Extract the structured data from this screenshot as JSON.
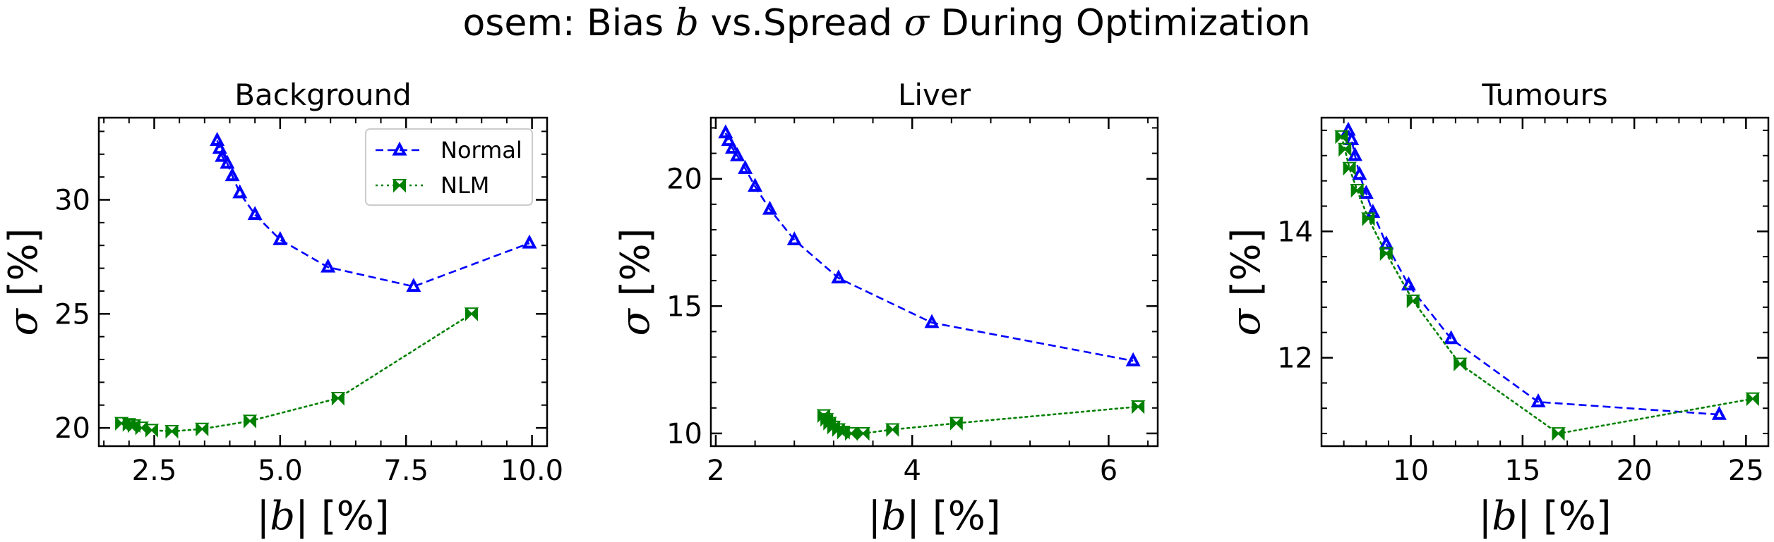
{
  "figure": {
    "title_prefix": "osem: Bias ",
    "title_bias_symbol": "b",
    "title_middle": " vs.Spread ",
    "title_sigma_symbol": "σ",
    "title_suffix": " During Optimization"
  },
  "legend": {
    "entries": [
      {
        "name": "Normal",
        "color": "#0000ff",
        "marker": "tri-up",
        "linestyle": "dashed"
      },
      {
        "name": "NLM",
        "color": "#008000",
        "marker": "bowtie",
        "linestyle": "dotted"
      }
    ],
    "placement": "upper-right of first panel"
  },
  "axis_labels": {
    "x_prefix": "|",
    "x_symbol": "b",
    "x_suffix": "| [%]",
    "y_symbol": "σ",
    "y_suffix": " [%]"
  },
  "chart_data": [
    {
      "type": "line",
      "title": "Background",
      "xlim": [
        1.4,
        10.3
      ],
      "ylim": [
        19.2,
        33.6
      ],
      "xticks": [
        2.5,
        5.0,
        7.5,
        10.0
      ],
      "xtick_labels": [
        "2.5",
        "5.0",
        "7.5",
        "10.0"
      ],
      "yticks": [
        20,
        25,
        30
      ],
      "ytick_labels": [
        "20",
        "25",
        "30"
      ],
      "x_minor_step": 0.5,
      "y_minor_step": 1,
      "grid": false,
      "legend": true,
      "series": [
        {
          "name": "Normal",
          "points": [
            [
              3.75,
              32.6
            ],
            [
              3.8,
              32.25
            ],
            [
              3.85,
              31.9
            ],
            [
              3.95,
              31.6
            ],
            [
              4.05,
              31.05
            ],
            [
              4.2,
              30.3
            ],
            [
              4.5,
              29.35
            ],
            [
              5.0,
              28.25
            ],
            [
              5.95,
              27.05
            ],
            [
              7.65,
              26.2
            ],
            [
              9.95,
              28.1
            ]
          ]
        },
        {
          "name": "NLM",
          "points": [
            [
              1.85,
              20.2
            ],
            [
              2.0,
              20.15
            ],
            [
              2.1,
              20.1
            ],
            [
              2.25,
              20.0
            ],
            [
              2.45,
              19.9
            ],
            [
              2.85,
              19.85
            ],
            [
              3.45,
              19.95
            ],
            [
              4.4,
              20.3
            ],
            [
              6.15,
              21.3
            ],
            [
              8.8,
              25.0
            ]
          ]
        }
      ]
    },
    {
      "type": "line",
      "title": "Liver",
      "xlim": [
        1.95,
        6.5
      ],
      "ylim": [
        9.5,
        22.4
      ],
      "xticks": [
        2,
        4,
        6
      ],
      "xtick_labels": [
        "2",
        "4",
        "6"
      ],
      "yticks": [
        10,
        15,
        20
      ],
      "ytick_labels": [
        "10",
        "15",
        "20"
      ],
      "x_minor_step": 0.4,
      "y_minor_step": 1,
      "grid": false,
      "legend": false,
      "series": [
        {
          "name": "Normal",
          "points": [
            [
              2.1,
              21.8
            ],
            [
              2.13,
              21.5
            ],
            [
              2.17,
              21.2
            ],
            [
              2.22,
              20.9
            ],
            [
              2.3,
              20.4
            ],
            [
              2.4,
              19.7
            ],
            [
              2.55,
              18.8
            ],
            [
              2.8,
              17.6
            ],
            [
              3.25,
              16.1
            ],
            [
              4.2,
              14.35
            ],
            [
              6.25,
              12.85
            ]
          ]
        },
        {
          "name": "NLM",
          "points": [
            [
              3.1,
              10.7
            ],
            [
              3.13,
              10.55
            ],
            [
              3.16,
              10.4
            ],
            [
              3.2,
              10.25
            ],
            [
              3.25,
              10.15
            ],
            [
              3.3,
              10.05
            ],
            [
              3.38,
              10.0
            ],
            [
              3.5,
              10.0
            ],
            [
              3.8,
              10.15
            ],
            [
              4.45,
              10.4
            ],
            [
              6.3,
              11.05
            ]
          ]
        }
      ]
    },
    {
      "type": "line",
      "title": "Tumours",
      "xlim": [
        6.0,
        26.0
      ],
      "ylim": [
        10.6,
        15.8
      ],
      "xticks": [
        10,
        15,
        20,
        25
      ],
      "xtick_labels": [
        "10",
        "15",
        "20",
        "25"
      ],
      "yticks": [
        12,
        14
      ],
      "ytick_labels": [
        "12",
        "14"
      ],
      "x_minor_step": 1,
      "y_minor_step": 0.4,
      "grid": false,
      "legend": false,
      "series": [
        {
          "name": "Normal",
          "points": [
            [
              7.2,
              15.6
            ],
            [
              7.35,
              15.45
            ],
            [
              7.5,
              15.2
            ],
            [
              7.7,
              14.9
            ],
            [
              8.0,
              14.6
            ],
            [
              8.3,
              14.3
            ],
            [
              8.9,
              13.8
            ],
            [
              9.9,
              13.15
            ],
            [
              11.8,
              12.3
            ],
            [
              15.7,
              11.3
            ],
            [
              23.8,
              11.1
            ]
          ]
        },
        {
          "name": "NLM",
          "points": [
            [
              6.9,
              15.5
            ],
            [
              7.05,
              15.3
            ],
            [
              7.25,
              15.0
            ],
            [
              7.6,
              14.65
            ],
            [
              8.1,
              14.2
            ],
            [
              8.9,
              13.65
            ],
            [
              10.1,
              12.9
            ],
            [
              12.2,
              11.9
            ],
            [
              16.6,
              10.8
            ],
            [
              25.3,
              11.35
            ]
          ]
        }
      ]
    }
  ]
}
